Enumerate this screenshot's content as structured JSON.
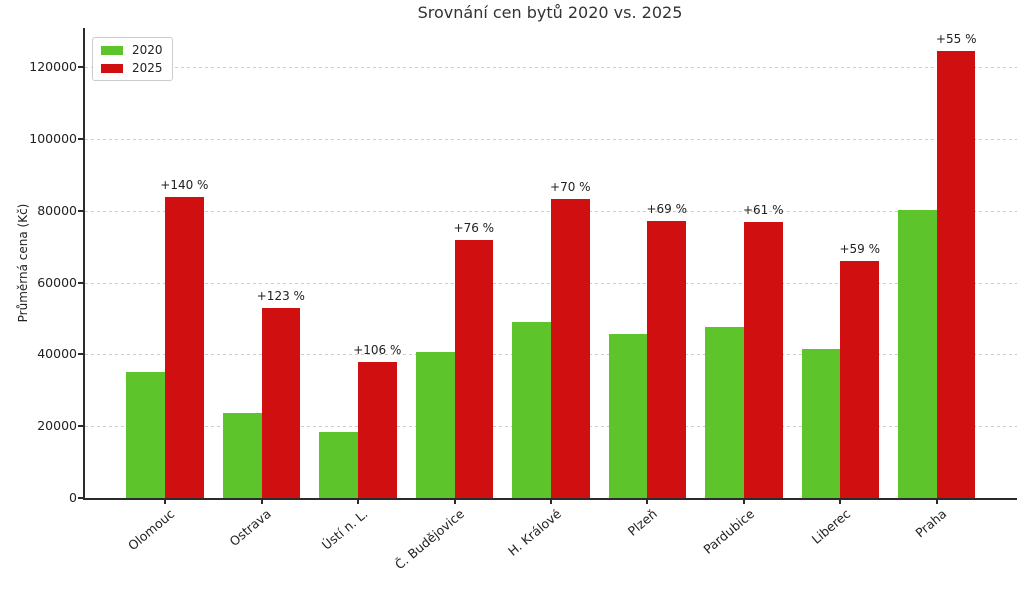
{
  "chart_data": {
    "type": "bar",
    "title": "Srovnání cen bytů 2020 vs. 2025",
    "xlabel": "",
    "ylabel": "Průměrná cena (Kč)",
    "categories": [
      "Olomouc",
      "Ostrava",
      "Ústí n. L.",
      "Č. Budějovice",
      "H. Králové",
      "Plzeň",
      "Pardubice",
      "Liberec",
      "Praha"
    ],
    "series": [
      {
        "name": "2020",
        "color": "#5dc42c",
        "values": [
          35000,
          23700,
          18400,
          40800,
          49000,
          45600,
          47700,
          41500,
          80300
        ]
      },
      {
        "name": "2025",
        "color": "#d01010",
        "values": [
          84000,
          52900,
          37900,
          71800,
          83300,
          77100,
          76800,
          66000,
          124500
        ]
      }
    ],
    "annotations": [
      "+140 %",
      "+123 %",
      "+106 %",
      "+76 %",
      "+70 %",
      "+69 %",
      "+61 %",
      "+59 %",
      "+55 %"
    ],
    "yticks": [
      0,
      20000,
      40000,
      60000,
      80000,
      100000,
      120000
    ],
    "ylim": [
      0,
      131000
    ],
    "grid": true,
    "grid_style": "dashed",
    "legend_position": "upper-left",
    "legend_entries": [
      "2020",
      "2025"
    ]
  },
  "colors": {
    "background": "#ffffff",
    "axis": "#2b2b2b",
    "grid": "#cdcdcd",
    "text": "#222222"
  }
}
